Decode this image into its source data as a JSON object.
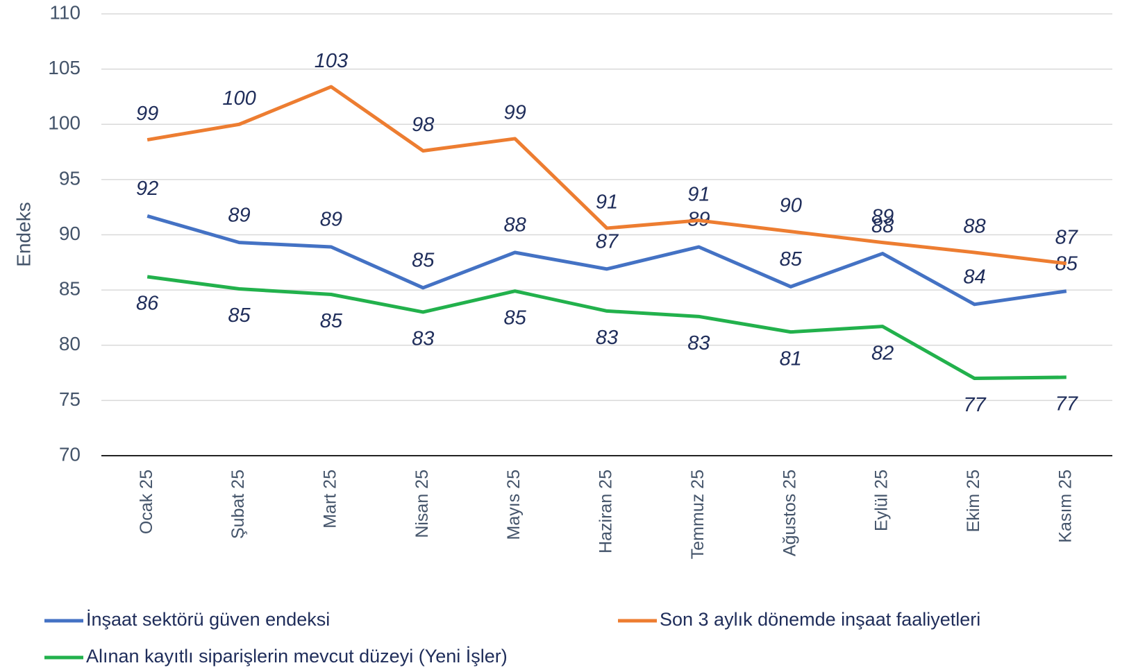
{
  "chart_data": {
    "type": "line",
    "ylabel": "Endeks",
    "categories": [
      "Ocak 25",
      "Şubat 25",
      "Mart 25",
      "Nisan 25",
      "Mayıs 25",
      "Haziran 25",
      "Temmuz 25",
      "Ağustos 25",
      "Eylül 25",
      "Ekim 25",
      "Kasım 25"
    ],
    "series": [
      {
        "name": "İnşaat sektörü güven endeksi",
        "color": "#4472c4",
        "values": [
          91.7,
          89.3,
          88.9,
          85.2,
          88.4,
          86.9,
          88.9,
          85.3,
          88.3,
          83.7,
          84.9
        ],
        "value_labels": [
          "92",
          "89",
          "89",
          "85",
          "88",
          "87",
          "89",
          "85",
          "88",
          "84",
          "85"
        ]
      },
      {
        "name": "Son 3 aylık dönemde inşaat faaliyetleri",
        "color": "#ed7d31",
        "values": [
          98.6,
          100.0,
          103.4,
          97.6,
          98.7,
          90.6,
          91.3,
          90.3,
          89.3,
          88.4,
          87.4
        ],
        "value_labels": [
          "99",
          "100",
          "103",
          "98",
          "99",
          "91",
          "91",
          "90",
          "89",
          "88",
          "87"
        ]
      },
      {
        "name": "Alınan kayıtlı siparişlerin mevcut düzeyi (Yeni İşler)",
        "color": "#22b14c",
        "values": [
          86.2,
          85.1,
          84.6,
          83.0,
          84.9,
          83.1,
          82.6,
          81.2,
          81.7,
          77.0,
          77.1
        ],
        "value_labels": [
          "86",
          "85",
          "85",
          "83",
          "85",
          "83",
          "83",
          "81",
          "82",
          "77",
          "77"
        ]
      }
    ],
    "ylim": [
      70,
      110
    ],
    "yticks": [
      70,
      75,
      80,
      85,
      90,
      95,
      100,
      105,
      110
    ],
    "grid": true
  }
}
